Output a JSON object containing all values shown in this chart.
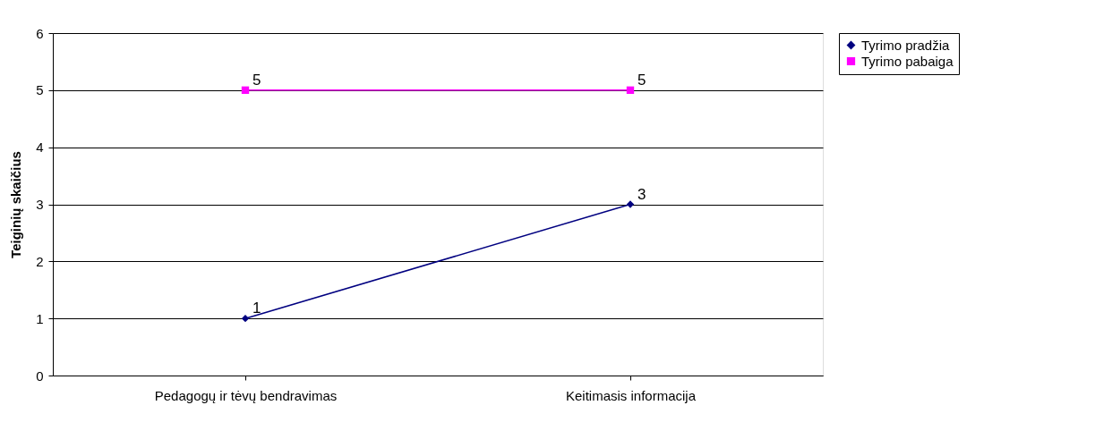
{
  "chart_data": {
    "type": "line",
    "ylabel": "Teiginių skaičius",
    "categories": [
      "Pedagogų ir tėvų bendravimas",
      "Keitimasis informacija"
    ],
    "series": [
      {
        "name": "Tyrimo pradžia",
        "color": "#000080",
        "values": [
          1,
          3
        ],
        "marker": "diamond"
      },
      {
        "name": "Tyrimo pabaiga",
        "color": "#ff00ff",
        "values": [
          5,
          5
        ],
        "marker": "square"
      }
    ],
    "ylim": [
      0,
      6
    ],
    "yticks": [
      0,
      1,
      2,
      3,
      4,
      5,
      6
    ],
    "grid": "y",
    "legend": "right",
    "data_labels": true,
    "line_style": "solid"
  }
}
